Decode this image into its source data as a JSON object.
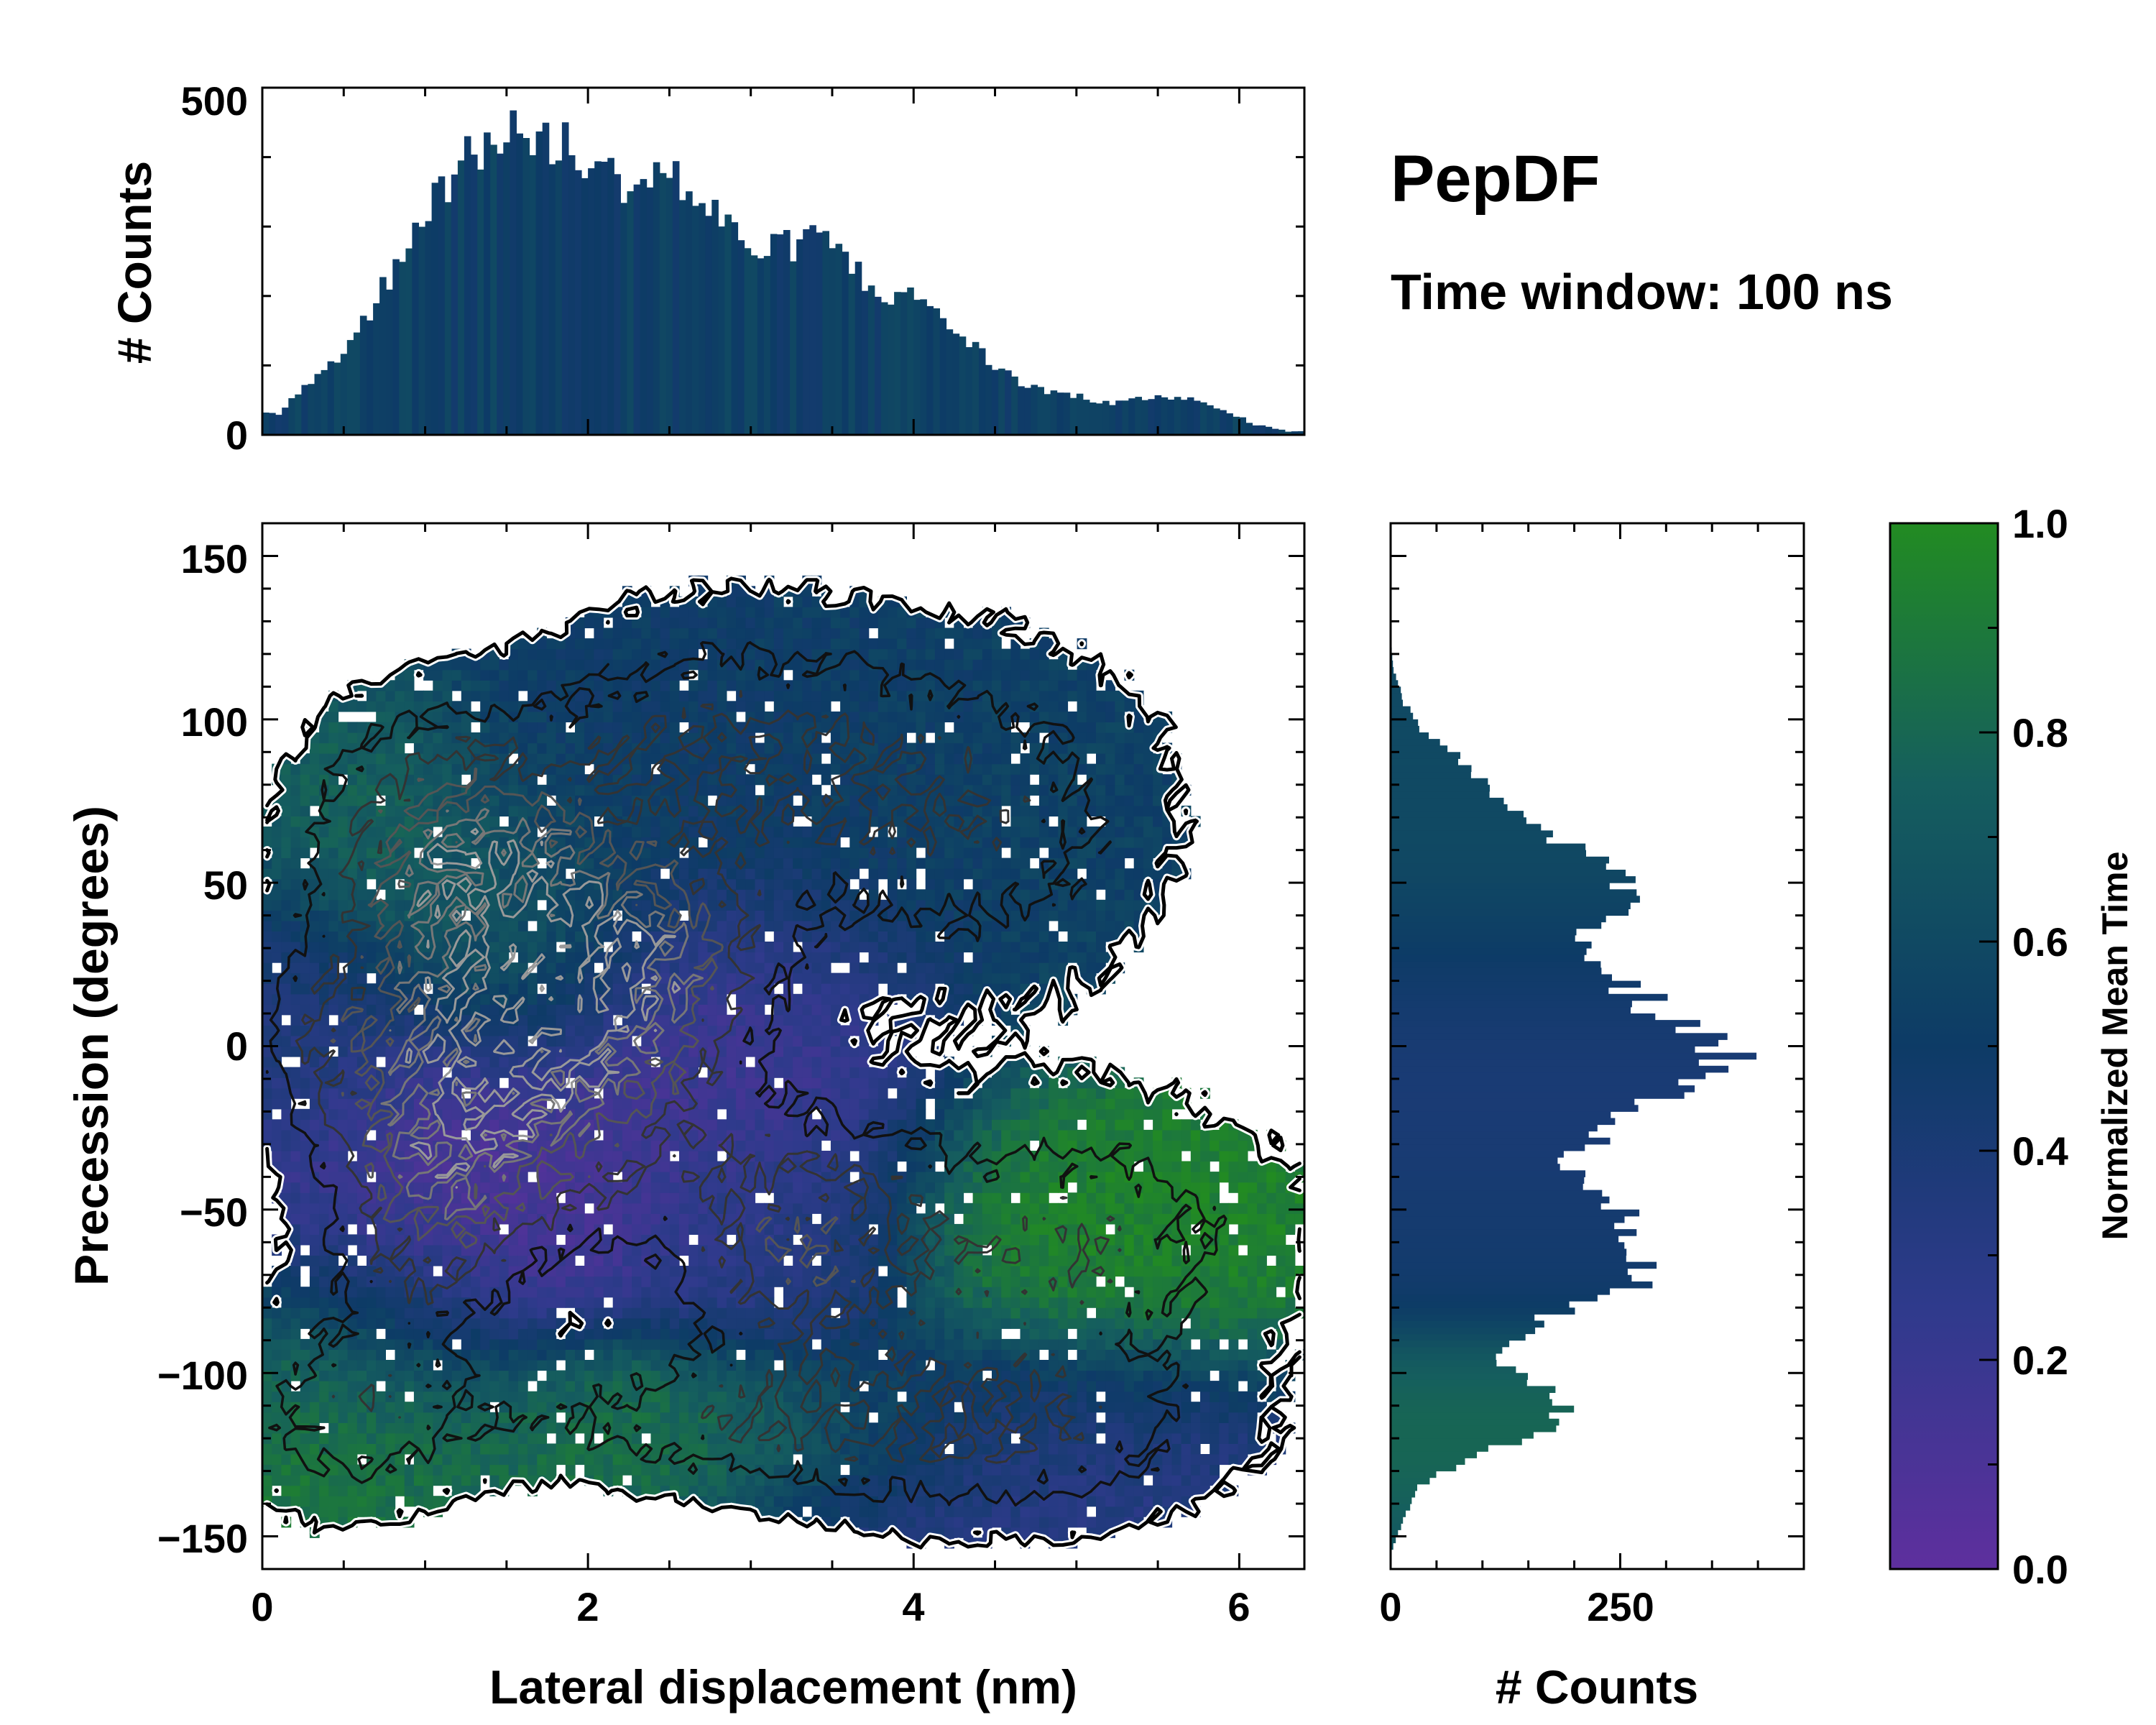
{
  "header": {
    "title": "PepDF",
    "subtitle": "Time window: 100 ns"
  },
  "colors": {
    "cmap_low": "#5e2f9e",
    "cmap_mid": "#0d3b66",
    "cmap_high": "#228b22",
    "contour_outline": "#000000",
    "contour_inner": "#777777"
  },
  "chart_data": [
    {
      "id": "top_histogram",
      "type": "bar",
      "title": "",
      "xlabel": "",
      "ylabel": "# Counts",
      "xlim": [
        0,
        6.4
      ],
      "ylim": [
        0,
        500
      ],
      "yticks": [
        0,
        500
      ],
      "ytick_labels": [
        "0",
        "500"
      ],
      "bin_centers": [
        0.1,
        0.3,
        0.5,
        0.7,
        0.9,
        1.1,
        1.3,
        1.5,
        1.7,
        1.9,
        2.1,
        2.3,
        2.5,
        2.7,
        2.9,
        3.1,
        3.3,
        3.5,
        3.7,
        3.9,
        4.1,
        4.3,
        4.5,
        4.7,
        4.9,
        5.1,
        5.3,
        5.5,
        5.7,
        5.9,
        6.1,
        6.3
      ],
      "counts": [
        30,
        80,
        120,
        190,
        290,
        360,
        400,
        450,
        410,
        420,
        370,
        370,
        380,
        330,
        290,
        260,
        280,
        280,
        220,
        200,
        190,
        140,
        100,
        70,
        60,
        50,
        45,
        60,
        50,
        35,
        15,
        5
      ]
    },
    {
      "id": "main_heatmap",
      "type": "heatmap",
      "title": "",
      "xlabel": "Lateral displacement (nm)",
      "ylabel": "Precession (degrees)",
      "xlim": [
        0,
        6.4
      ],
      "ylim": [
        -160,
        160
      ],
      "xticks": [
        0,
        2,
        4,
        6
      ],
      "xtick_labels": [
        "0",
        "2",
        "4",
        "6"
      ],
      "yticks": [
        -150,
        -100,
        -50,
        0,
        50,
        100,
        150
      ],
      "ytick_labels": [
        "−150",
        "−100",
        "−50",
        "0",
        "50",
        "100",
        "150"
      ],
      "colorbar_label": "Normalized Mean Time",
      "colorbar_range": [
        0.0,
        1.0
      ],
      "clusters": [
        {
          "x": 1.6,
          "y": -5,
          "sx": 0.75,
          "sy": 35,
          "w": 1.0
        },
        {
          "x": 1.4,
          "y": 50,
          "sx": 0.6,
          "sy": 25,
          "w": 0.6
        },
        {
          "x": 2.4,
          "y": 25,
          "sx": 0.5,
          "sy": 20,
          "w": 0.5
        },
        {
          "x": 3.3,
          "y": -60,
          "sx": 0.55,
          "sy": 28,
          "w": 0.55
        },
        {
          "x": 2.8,
          "y": 90,
          "sx": 0.9,
          "sy": 30,
          "w": 0.45
        },
        {
          "x": 4.4,
          "y": 70,
          "sx": 0.8,
          "sy": 35,
          "w": 0.4
        },
        {
          "x": 0.9,
          "y": 75,
          "sx": 0.5,
          "sy": 25,
          "w": 0.3
        },
        {
          "x": 5.0,
          "y": -60,
          "sx": 0.9,
          "sy": 30,
          "w": 0.45
        },
        {
          "x": 4.5,
          "y": -120,
          "sx": 1.0,
          "sy": 20,
          "w": 0.4
        },
        {
          "x": 0.5,
          "y": -110,
          "sx": 0.5,
          "sy": 25,
          "w": 0.35
        },
        {
          "x": 2.5,
          "y": -115,
          "sx": 1.1,
          "sy": 15,
          "w": 0.3
        },
        {
          "x": 0.3,
          "y": 5,
          "sx": 0.3,
          "sy": 20,
          "w": 0.25
        },
        {
          "x": 1.0,
          "y": -45,
          "sx": 0.4,
          "sy": 30,
          "w": 0.45
        }
      ],
      "time_regions": [
        {
          "x": 1.0,
          "y": -50,
          "sx": 0.7,
          "sy": 35,
          "t": 0.1
        },
        {
          "x": 3.0,
          "y": 0,
          "sx": 0.7,
          "sy": 30,
          "t": 0.15
        },
        {
          "x": 3.2,
          "y": -60,
          "sx": 0.5,
          "sy": 25,
          "t": 0.3
        },
        {
          "x": 1.5,
          "y": 40,
          "sx": 0.5,
          "sy": 25,
          "t": 0.7
        },
        {
          "x": 0.7,
          "y": 70,
          "sx": 0.4,
          "sy": 25,
          "t": 0.8
        },
        {
          "x": 2.8,
          "y": 90,
          "sx": 1.2,
          "sy": 35,
          "t": 0.5
        },
        {
          "x": 4.5,
          "y": 70,
          "sx": 1.0,
          "sy": 40,
          "t": 0.55
        },
        {
          "x": 5.2,
          "y": -55,
          "sx": 0.8,
          "sy": 30,
          "t": 0.95
        },
        {
          "x": 4.6,
          "y": -120,
          "sx": 1.0,
          "sy": 20,
          "t": 0.3
        },
        {
          "x": 0.5,
          "y": -110,
          "sx": 0.6,
          "sy": 30,
          "t": 0.9
        },
        {
          "x": 2.6,
          "y": -115,
          "sx": 1.0,
          "sy": 15,
          "t": 0.9
        },
        {
          "x": 0.3,
          "y": 5,
          "sx": 0.4,
          "sy": 25,
          "t": 0.4
        }
      ]
    },
    {
      "id": "right_histogram",
      "type": "bar",
      "orientation": "horizontal",
      "title": "",
      "xlabel": "# Counts",
      "ylabel": "",
      "xlim": [
        0,
        450
      ],
      "ylim": [
        -160,
        160
      ],
      "xticks": [
        0,
        250
      ],
      "xtick_labels": [
        "0",
        "250"
      ],
      "bin_centers": [
        -155,
        -145,
        -135,
        -125,
        -115,
        -105,
        -95,
        -85,
        -75,
        -65,
        -55,
        -45,
        -35,
        -25,
        -15,
        -5,
        5,
        15,
        25,
        35,
        45,
        55,
        65,
        75,
        85,
        95,
        105,
        115,
        125,
        135,
        145,
        155
      ],
      "counts": [
        0,
        15,
        30,
        90,
        190,
        170,
        120,
        160,
        250,
        290,
        270,
        240,
        200,
        230,
        310,
        370,
        330,
        270,
        240,
        210,
        250,
        260,
        170,
        130,
        90,
        40,
        15,
        3,
        0,
        0,
        0,
        0
      ]
    }
  ]
}
